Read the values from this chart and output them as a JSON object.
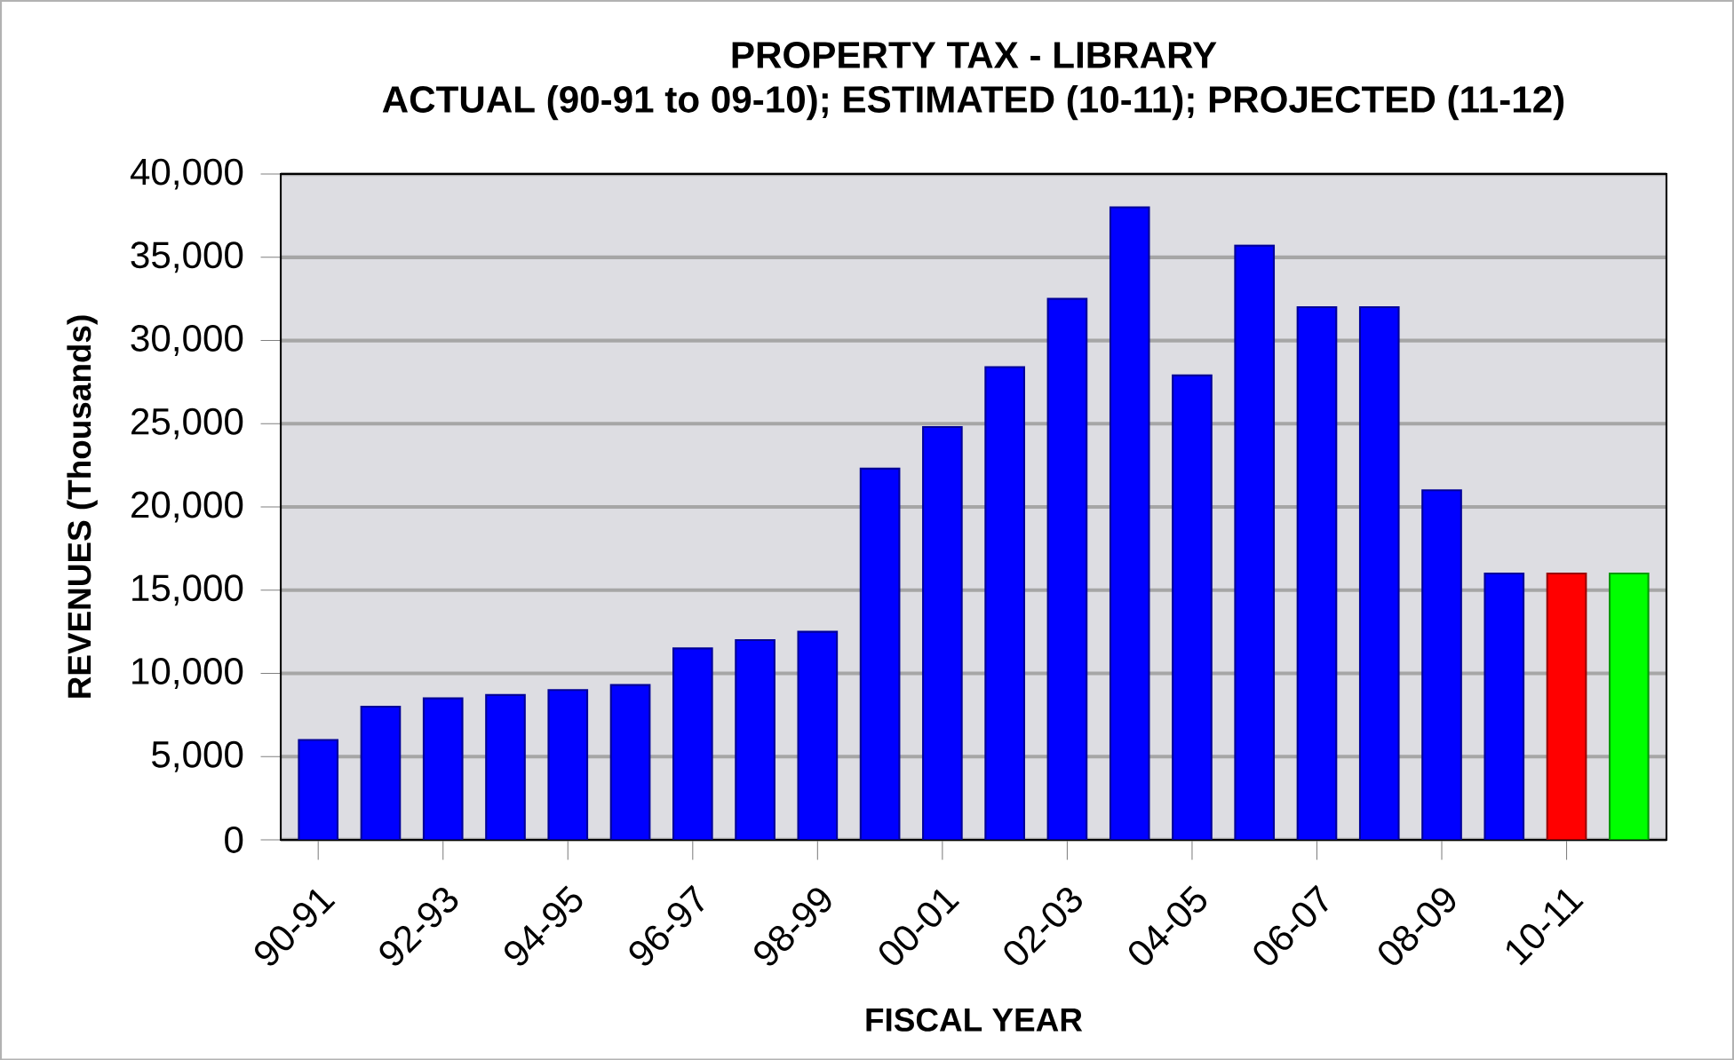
{
  "chart_data": {
    "type": "bar",
    "title": "PROPERTY TAX - LIBRARY",
    "subtitle": "ACTUAL (90-91 to 09-10); ESTIMATED (10-11); PROJECTED (11-12)",
    "xlabel": "FISCAL YEAR",
    "ylabel": "REVENUES  (Thousands)",
    "categories": [
      "90-91",
      null,
      "92-93",
      null,
      "94-95",
      null,
      "96-97",
      null,
      "98-99",
      null,
      "00-01",
      null,
      "02-03",
      null,
      "04-05",
      null,
      "06-07",
      null,
      "08-09",
      null,
      "10-11",
      null
    ],
    "values": [
      6000,
      8000,
      8500,
      8700,
      9000,
      9300,
      11500,
      12000,
      12500,
      22300,
      24800,
      28400,
      32500,
      38000,
      27900,
      35700,
      32000,
      32000,
      21000,
      16000,
      16000,
      16000
    ],
    "colors": [
      "#0000ff",
      "#0000ff",
      "#0000ff",
      "#0000ff",
      "#0000ff",
      "#0000ff",
      "#0000ff",
      "#0000ff",
      "#0000ff",
      "#0000ff",
      "#0000ff",
      "#0000ff",
      "#0000ff",
      "#0000ff",
      "#0000ff",
      "#0000ff",
      "#0000ff",
      "#0000ff",
      "#0000ff",
      "#0000ff",
      "#ff0000",
      "#00ff00"
    ],
    "ylim": [
      0,
      40000
    ],
    "yticks": [
      {
        "value": 0,
        "label": "0"
      },
      {
        "value": 5000,
        "label": "5,000"
      },
      {
        "value": 10000,
        "label": "10,000"
      },
      {
        "value": 15000,
        "label": "15,000"
      },
      {
        "value": 20000,
        "label": "20,000"
      },
      {
        "value": 25000,
        "label": "25,000"
      },
      {
        "value": 30000,
        "label": "30,000"
      },
      {
        "value": 35000,
        "label": "35,000"
      },
      {
        "value": 40000,
        "label": "40,000"
      }
    ],
    "grid": "y"
  }
}
